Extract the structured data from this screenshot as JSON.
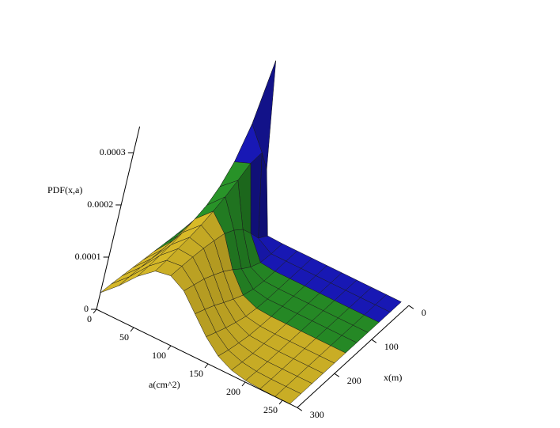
{
  "chart_data": {
    "type": "surface",
    "z_label": "PDF(x,a)",
    "a_label": "a(cm^2)",
    "x_label": "x(m)",
    "a": [
      0,
      20,
      40,
      60,
      80,
      100,
      120,
      140,
      160,
      180,
      200,
      220,
      240,
      260
    ],
    "alim": [
      0,
      270
    ],
    "aticks": [
      0,
      50,
      100,
      150,
      200,
      250
    ],
    "xlim": [
      0,
      300
    ],
    "xticks": [
      0,
      100,
      200,
      300
    ],
    "zlim": [
      0,
      0.00035
    ],
    "zticks": [
      0,
      0.0001,
      0.0002,
      0.0003
    ],
    "series": [
      {
        "color": "#1c1cd4",
        "x": [
          0,
          30,
          60
        ],
        "z": [
          [
            0,
            1.5e-05,
            0.000309,
            0.000114,
            1e-06,
            0,
            0,
            0,
            0,
            0,
            0,
            0,
            0,
            0
          ],
          [
            0,
            2.9e-05,
            0.000207,
            0.000166,
            1.6e-05,
            0,
            0,
            0,
            0,
            0,
            0,
            0,
            0,
            0
          ],
          [
            2e-06,
            3.7e-05,
            0.000154,
            0.000165,
            4.5e-05,
            3e-06,
            0,
            0,
            0,
            0,
            0,
            0,
            0,
            0
          ]
        ]
      },
      {
        "color": "#2ca02c",
        "x": [
          60,
          90,
          120,
          150
        ],
        "z": [
          [
            2e-06,
            3.7e-05,
            0.000154,
            0.000165,
            4.5e-05,
            3e-06,
            0,
            0,
            0,
            0,
            0,
            0,
            0,
            0
          ],
          [
            5e-06,
            4.2e-05,
            0.000126,
            0.000152,
            7.2e-05,
            1.4e-05,
            1e-06,
            0,
            0,
            0,
            0,
            0,
            0,
            0
          ],
          [
            9e-06,
            4.4e-05,
            0.00011,
            0.00014,
            9e-05,
            3e-05,
            5e-06,
            0,
            0,
            0,
            0,
            0,
            0,
            0
          ],
          [
            1.3e-05,
            4.8e-05,
            0.000103,
            0.000132,
            0.000103,
            4.8e-05,
            1.3e-05,
            2e-06,
            0,
            0,
            0,
            0,
            0,
            0
          ]
        ]
      },
      {
        "color": "#eccb2c",
        "x": [
          150,
          180,
          210,
          240,
          270,
          300
        ],
        "z": [
          [
            1.3e-05,
            4.8e-05,
            0.000103,
            0.000132,
            0.000103,
            4.8e-05,
            1.3e-05,
            2e-06,
            0,
            0,
            0,
            0,
            0,
            0
          ],
          [
            1.7e-05,
            5e-05,
            9.7e-05,
            0.000125,
            0.000109,
            6.4e-05,
            2.5e-05,
            6e-06,
            1e-06,
            0,
            0,
            0,
            0,
            0
          ],
          [
            2.1e-05,
            5.2e-05,
            9.3e-05,
            0.000121,
            0.000114,
            7.7e-05,
            3.8e-05,
            1.4e-05,
            3e-06,
            1e-06,
            0,
            0,
            0,
            0
          ],
          [
            2.5e-05,
            5.5e-05,
            9.2e-05,
            0.000119,
            0.000117,
            8.9e-05,
            5.2e-05,
            2.3e-05,
            8e-06,
            2e-06,
            0,
            0,
            0,
            0
          ],
          [
            2.9e-05,
            5.7e-05,
            9.1e-05,
            0.000116,
            0.000119,
            9.7e-05,
            6.4e-05,
            3.4e-05,
            1.4e-05,
            5e-06,
            1e-06,
            0,
            0,
            0
          ],
          [
            3.2e-05,
            5.9e-05,
            9.1e-05,
            0.000115,
            0.00012,
            0.000105,
            7.5e-05,
            4.5e-05,
            2.2e-05,
            9e-06,
            3e-06,
            1e-06,
            0,
            0
          ]
        ]
      }
    ]
  }
}
